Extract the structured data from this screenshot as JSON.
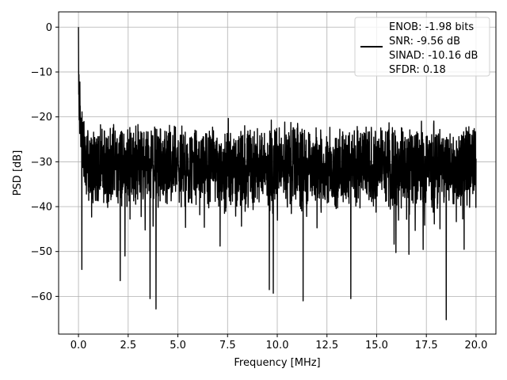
{
  "chart_data": {
    "type": "line",
    "title": "",
    "xlabel": "Frequency [MHz]",
    "ylabel": "PSD [dB]",
    "xlim": [
      -0.999,
      20.999
    ],
    "ylim": [
      -68.4,
      3.4
    ],
    "x_ticks": [
      0.0,
      2.5,
      5.0,
      7.5,
      10.0,
      12.5,
      15.0,
      17.5,
      20.0
    ],
    "x_tick_labels": [
      "0.0",
      "2.5",
      "5.0",
      "7.5",
      "10.0",
      "12.5",
      "15.0",
      "17.5",
      "20.0"
    ],
    "y_ticks": [
      0,
      -10,
      -20,
      -30,
      -40,
      -50,
      -60
    ],
    "y_tick_labels": [
      "0",
      "−10",
      "−20",
      "−30",
      "−40",
      "−50",
      "−60"
    ],
    "grid": true,
    "legend_position": "top-right",
    "series": [
      {
        "name": "ENOB: -1.98 bits\nSNR: -9.56 dB\nSINAD: -10.16 dB\nSFDR: 0.18",
        "color": "#000000",
        "x_range": [
          0.0,
          20.0
        ],
        "peak": {
          "x": 0.0,
          "y": 0.0
        },
        "noise_floor_mean_db": -31,
        "notable_minima": [
          {
            "x": 0.17,
            "y": -54
          },
          {
            "x": 2.1,
            "y": -56.5
          },
          {
            "x": 3.6,
            "y": -60.5
          },
          {
            "x": 3.9,
            "y": -62.8
          },
          {
            "x": 9.6,
            "y": -58.5
          },
          {
            "x": 9.8,
            "y": -59.3
          },
          {
            "x": 11.3,
            "y": -61.0
          },
          {
            "x": 13.7,
            "y": -60.5
          },
          {
            "x": 18.5,
            "y": -65.2
          }
        ]
      }
    ]
  }
}
